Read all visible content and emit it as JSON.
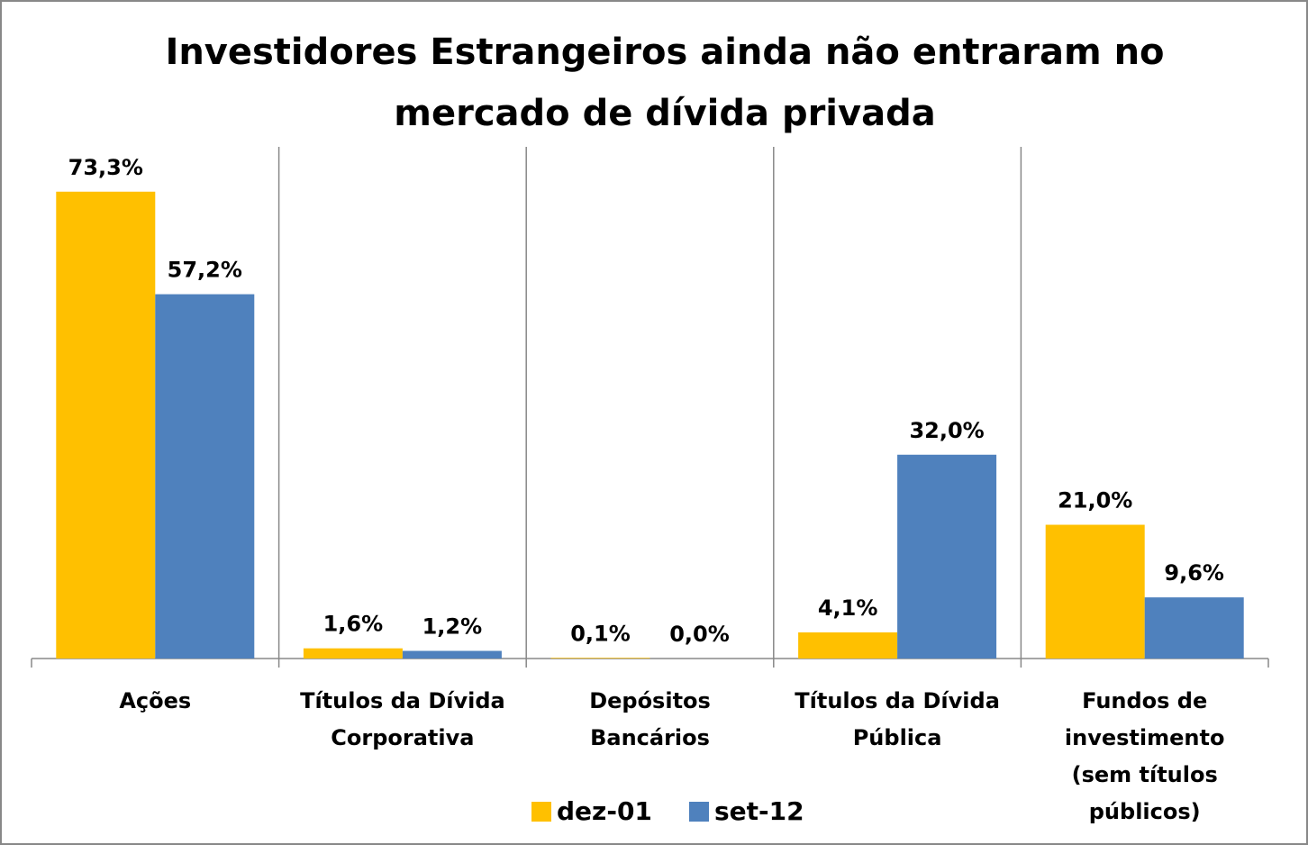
{
  "chart_data": {
    "type": "bar",
    "title": [
      "Investidores Estrangeiros  ainda não entraram no",
      "mercado de dívida privada"
    ],
    "categories": [
      [
        "Ações"
      ],
      [
        "Títulos da  Dívida",
        "Corporativa"
      ],
      [
        "Depósitos",
        "Bancários"
      ],
      [
        "Títulos da Dívida",
        "Pública"
      ],
      [
        "Fundos de",
        "investimento",
        "(sem títulos",
        "públicos)"
      ]
    ],
    "series": [
      {
        "name": "dez-01",
        "color": "#FFC000",
        "values": [
          73.3,
          1.6,
          0.1,
          4.1,
          21.0
        ],
        "value_labels": [
          "73,3%",
          "1,6%",
          "0,1%",
          "4,1%",
          "21,0%"
        ]
      },
      {
        "name": "set-12",
        "color": "#4F81BD",
        "values": [
          57.2,
          1.2,
          0.0,
          32.0,
          9.6
        ],
        "value_labels": [
          "57,2%",
          "1,2%",
          "0,0%",
          "32,0%",
          "9,6%"
        ]
      }
    ],
    "grid": true
  }
}
